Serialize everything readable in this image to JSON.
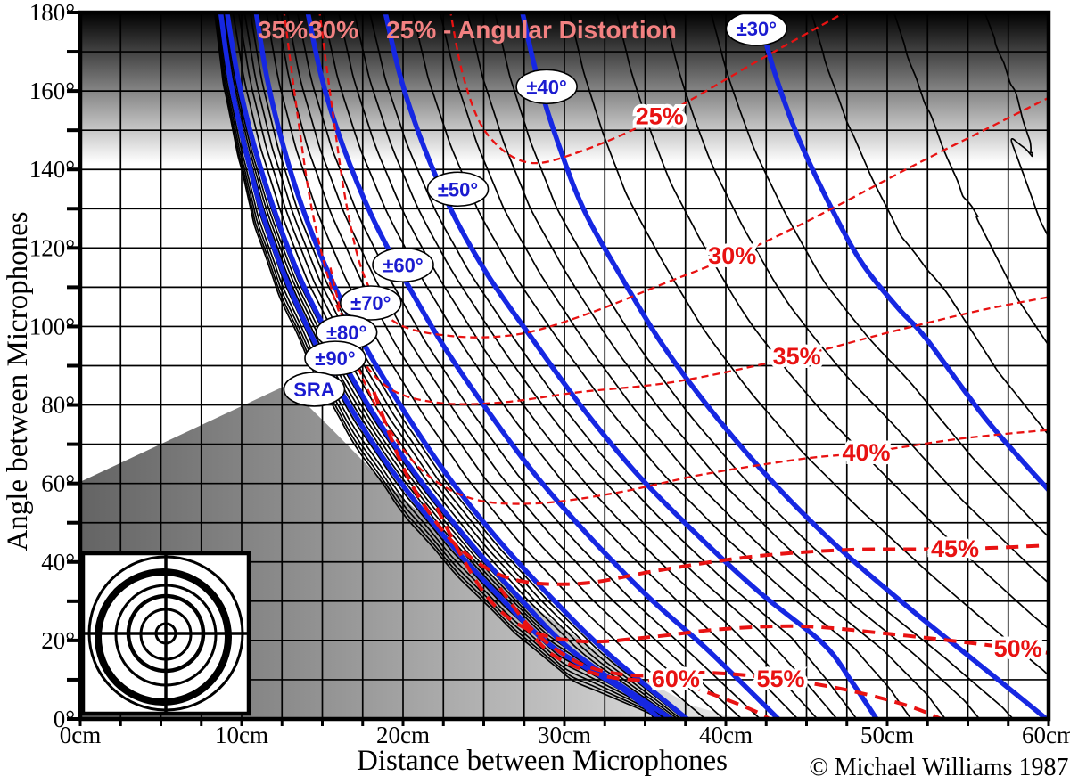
{
  "header_annotations": {
    "pink_35": "35%",
    "pink_30": "30%",
    "pink_title": "25% - Angular Distortion"
  },
  "footer": {
    "copyright": "© Michael Williams 1987"
  },
  "colors": {
    "sra_curve_blue": "#1627e2",
    "label_blue": "#1b1bd0",
    "distortion_red": "#e81212",
    "top_label_pink": "#f28181",
    "grid_black": "#000000",
    "background": "#ffffff"
  },
  "chart_data": {
    "type": "line",
    "x_axis": {
      "label": "Distance between Microphones",
      "unit": "cm",
      "range": [
        0,
        60
      ],
      "grid_step": 2.5,
      "tick_label_step": 10,
      "tick_labels": [
        "0cm",
        "10cm",
        "20cm",
        "30cm",
        "40cm",
        "50cm",
        "60cm"
      ]
    },
    "y_axis": {
      "label": "Angle between Microphones",
      "unit": "degrees",
      "range": [
        0,
        180
      ],
      "grid_step": 10,
      "tick_label_step": 20,
      "tick_labels": [
        "0°",
        "20°",
        "40°",
        "60°",
        "80°",
        "100°",
        "120°",
        "140°",
        "160°",
        "180°"
      ]
    },
    "sra_bundle_label": {
      "text": "SRA",
      "cm": 14.5,
      "deg": 84.0
    },
    "sra_curves": [
      {
        "name": "±30°",
        "label": {
          "text": "±30°",
          "cm": 41.9,
          "deg": 175.9
        },
        "points": [
          [
            42.0,
            180
          ],
          [
            43.0,
            165
          ],
          [
            44.4,
            149
          ],
          [
            46.2,
            133
          ],
          [
            48.3,
            117
          ],
          [
            50.6,
            105
          ],
          [
            52.4,
            97
          ],
          [
            56.1,
            76.5
          ],
          [
            59.9,
            58.8
          ],
          [
            61.5,
            52
          ]
        ]
      },
      {
        "name": "±40°",
        "label": {
          "text": "±40°",
          "cm": 28.9,
          "deg": 161.1
        },
        "points": [
          [
            27.4,
            180
          ],
          [
            28.3,
            163.9
          ],
          [
            29.6,
            146.8
          ],
          [
            31.2,
            129.8
          ],
          [
            33.5,
            112.8
          ],
          [
            36.2,
            94.6
          ],
          [
            39.5,
            76.5
          ],
          [
            43.1,
            59.5
          ],
          [
            47.0,
            43.6
          ],
          [
            51.2,
            28.8
          ],
          [
            55.3,
            15.2
          ],
          [
            59.4,
            1.6
          ],
          [
            60.4,
            -2
          ]
        ]
      },
      {
        "name": "±50°",
        "label": {
          "text": "±50°",
          "cm": 23.4,
          "deg": 135.0
        },
        "points": [
          [
            18.9,
            180
          ],
          [
            19.9,
            162.7
          ],
          [
            21.3,
            145.7
          ],
          [
            23.1,
            128.7
          ],
          [
            25.3,
            112.8
          ],
          [
            28.0,
            96.9
          ],
          [
            31.0,
            79.9
          ],
          [
            34.4,
            62.9
          ],
          [
            38.2,
            47.0
          ],
          [
            42.1,
            32.2
          ],
          [
            46.0,
            19.3
          ],
          [
            47.8,
            9.5
          ],
          [
            49.5,
            -1
          ]
        ]
      },
      {
        "name": "±60°",
        "label": {
          "text": "±60°",
          "cm": 20.0,
          "deg": 115.7
        },
        "points": [
          [
            14.1,
            180
          ],
          [
            15.0,
            162.7
          ],
          [
            16.3,
            145.7
          ],
          [
            18.0,
            128.7
          ],
          [
            20.0,
            112.8
          ],
          [
            22.4,
            95.8
          ],
          [
            25.2,
            78.8
          ],
          [
            28.3,
            61.7
          ],
          [
            31.7,
            45.8
          ],
          [
            35.2,
            31.1
          ],
          [
            38.9,
            17.5
          ],
          [
            43.5,
            -1
          ]
        ]
      },
      {
        "name": "±70°",
        "label": {
          "text": "±70°",
          "cm": 18.0,
          "deg": 106.0
        },
        "points": [
          [
            10.9,
            180
          ],
          [
            11.6,
            162.7
          ],
          [
            12.6,
            145.7
          ],
          [
            13.9,
            128.7
          ],
          [
            15.6,
            111.6
          ],
          [
            17.7,
            94.6
          ],
          [
            20.2,
            77.6
          ],
          [
            23.0,
            60.6
          ],
          [
            26.1,
            44.7
          ],
          [
            29.4,
            30.0
          ],
          [
            32.8,
            16.3
          ],
          [
            37.9,
            -1
          ]
        ]
      },
      {
        "name": "±80°",
        "label": {
          "text": "±80°",
          "cm": 16.5,
          "deg": 98.5
        },
        "points": [
          [
            9.1,
            180
          ],
          [
            9.8,
            162.7
          ],
          [
            10.8,
            145.7
          ],
          [
            12.1,
            128.7
          ],
          [
            13.7,
            111.6
          ],
          [
            15.8,
            94.6
          ],
          [
            18.2,
            77.6
          ],
          [
            21.1,
            60.6
          ],
          [
            24.2,
            44.7
          ],
          [
            27.4,
            30.0
          ],
          [
            30.8,
            16.3
          ],
          [
            37.0,
            -1
          ]
        ]
      },
      {
        "name": "±90°",
        "label": {
          "text": "±90°",
          "cm": 15.8,
          "deg": 91.9
        },
        "points": [
          [
            8.7,
            180
          ],
          [
            9.3,
            162.7
          ],
          [
            10.2,
            145.7
          ],
          [
            11.3,
            128.7
          ],
          [
            12.8,
            111.6
          ],
          [
            14.7,
            94.6
          ],
          [
            17.0,
            77.6
          ],
          [
            19.7,
            61.1
          ],
          [
            22.7,
            45.8
          ],
          [
            25.9,
            31.5
          ],
          [
            29.2,
            18.6
          ],
          [
            33.7,
            7.3
          ],
          [
            36.2,
            -1
          ]
        ]
      }
    ],
    "intermediate_black_curves": {
      "step_deg": 2,
      "per_gap_fractions": [
        0.2,
        0.4,
        0.6,
        0.8
      ],
      "right_extrapolation": [
        1.226,
        1.577,
        1.962,
        2.45
      ],
      "left_extrapolation": [
        1.22,
        1.44,
        1.63,
        1.8,
        1.94
      ]
    },
    "distortion_curves": [
      {
        "name": "25%",
        "style": "thin",
        "label": {
          "cm": 35.9,
          "deg": 153.6
        },
        "points": [
          [
            22.9,
            181
          ],
          [
            23.8,
            162.7
          ],
          [
            25.2,
            149.1
          ],
          [
            27.7,
            141.8
          ],
          [
            31.0,
            144.6
          ],
          [
            35.9,
            153.4
          ],
          [
            42.0,
            167.7
          ],
          [
            47.8,
            181
          ]
        ]
      },
      {
        "name": "30%",
        "style": "thin",
        "label": {
          "cm": 40.4,
          "deg": 118.0
        },
        "points": [
          [
            14.8,
            181
          ],
          [
            15.6,
            155.9
          ],
          [
            16.5,
            131
          ],
          [
            17.6,
            112.8
          ],
          [
            19.4,
            101.4
          ],
          [
            22.9,
            97.6
          ],
          [
            27.1,
            98
          ],
          [
            31.5,
            103.3
          ],
          [
            36.2,
            111
          ],
          [
            40.4,
            117.8
          ],
          [
            45.1,
            126.9
          ],
          [
            51.4,
            140.5
          ],
          [
            55.9,
            149.8
          ],
          [
            60.4,
            159.1
          ]
        ]
      },
      {
        "name": "35%",
        "style": "thin",
        "label": {
          "cm": 44.4,
          "deg": 92.4
        },
        "points": [
          [
            12.6,
            181
          ],
          [
            13.4,
            155.9
          ],
          [
            14.3,
            131
          ],
          [
            15.5,
            110.5
          ],
          [
            17.0,
            94.6
          ],
          [
            19.1,
            84.4
          ],
          [
            22.1,
            80.6
          ],
          [
            26.0,
            80.6
          ],
          [
            31.0,
            83.3
          ],
          [
            37.0,
            86
          ],
          [
            44.4,
            92.4
          ],
          [
            50.3,
            98.7
          ],
          [
            55.9,
            104.2
          ],
          [
            60.4,
            107.8
          ]
        ]
      },
      {
        "name": "40%",
        "style": "thin",
        "label": {
          "cm": 48.7,
          "deg": 67.9
        },
        "points": [
          [
            15.5,
            115
          ],
          [
            16.3,
            101.4
          ],
          [
            17.4,
            87.8
          ],
          [
            19.1,
            74.2
          ],
          [
            21.3,
            62.9
          ],
          [
            24.3,
            56.1
          ],
          [
            28.2,
            54.9
          ],
          [
            33.2,
            57.6
          ],
          [
            38.7,
            62.4
          ],
          [
            44.8,
            66.3
          ],
          [
            48.7,
            67.9
          ],
          [
            54.7,
            71.5
          ],
          [
            60.4,
            73.8
          ]
        ]
      },
      {
        "name": "45%",
        "style": "bold",
        "label": {
          "cm": 54.2,
          "deg": 43.3
        },
        "points": [
          [
            18.2,
            83.3
          ],
          [
            19.9,
            65.1
          ],
          [
            21.6,
            52.7
          ],
          [
            23.8,
            42.4
          ],
          [
            26.8,
            35.6
          ],
          [
            31.0,
            34.5
          ],
          [
            35.9,
            37.9
          ],
          [
            41.5,
            41.3
          ],
          [
            47.6,
            43.1
          ],
          [
            54.3,
            43.3
          ],
          [
            60.4,
            44.3
          ]
        ]
      },
      {
        "name": "50%",
        "style": "bold",
        "label": {
          "cm": 58.1,
          "deg": 17.9
        },
        "points": [
          [
            22.1,
            53.8
          ],
          [
            23.8,
            40.2
          ],
          [
            25.7,
            28.8
          ],
          [
            28.2,
            22
          ],
          [
            31.5,
            19.7
          ],
          [
            35.4,
            20.9
          ],
          [
            39.8,
            22.9
          ],
          [
            44.8,
            23.6
          ],
          [
            50.3,
            21.6
          ],
          [
            55.3,
            19.3
          ],
          [
            60.4,
            16.6
          ]
        ]
      },
      {
        "name": "55%",
        "style": "bold",
        "label": {
          "cm": 43.4,
          "deg": 10.2
        },
        "points": [
          [
            26.0,
            33.4
          ],
          [
            28.2,
            22
          ],
          [
            31.0,
            14.1
          ],
          [
            34.3,
            11.1
          ],
          [
            38.7,
            11.8
          ],
          [
            43.4,
            10.2
          ],
          [
            47.6,
            7.3
          ],
          [
            51.4,
            3.2
          ],
          [
            53.9,
            -1
          ]
        ]
      },
      {
        "name": "60%",
        "style": "bold",
        "label": {
          "cm": 36.9,
          "deg": 10.2
        },
        "points": [
          [
            27.4,
            24.3
          ],
          [
            29.3,
            16.3
          ],
          [
            32.1,
            11.3
          ],
          [
            34.8,
            9.8
          ],
          [
            36.9,
            9.5
          ],
          [
            39.3,
            6.1
          ],
          [
            41.8,
            2
          ],
          [
            43.1,
            -1
          ]
        ]
      }
    ],
    "shaded_regions": [
      {
        "name": "top-gradient-band",
        "type": "vertical-gradient",
        "top_deg": 180,
        "bottom_deg": 141.6,
        "from_color": "#000000",
        "to_color": "#ffffff"
      },
      {
        "name": "lower-left-gradient-wedge",
        "type": "horizontal-gradient",
        "from_color": "#646464",
        "to_color": "#ececec",
        "points": [
          [
            0.1,
            60.6
          ],
          [
            12.8,
            85.1
          ],
          [
            15.5,
            74.2
          ],
          [
            18.2,
            62.9
          ],
          [
            21.3,
            51.5
          ],
          [
            24.4,
            40.2
          ],
          [
            27.6,
            30.0
          ],
          [
            31.0,
            20.2
          ],
          [
            34.4,
            11.3
          ],
          [
            37.9,
            3.4
          ],
          [
            40.9,
            0
          ],
          [
            0.1,
            0
          ]
        ]
      }
    ]
  },
  "inset_logo": {
    "name": "concentric-circles-logo"
  }
}
